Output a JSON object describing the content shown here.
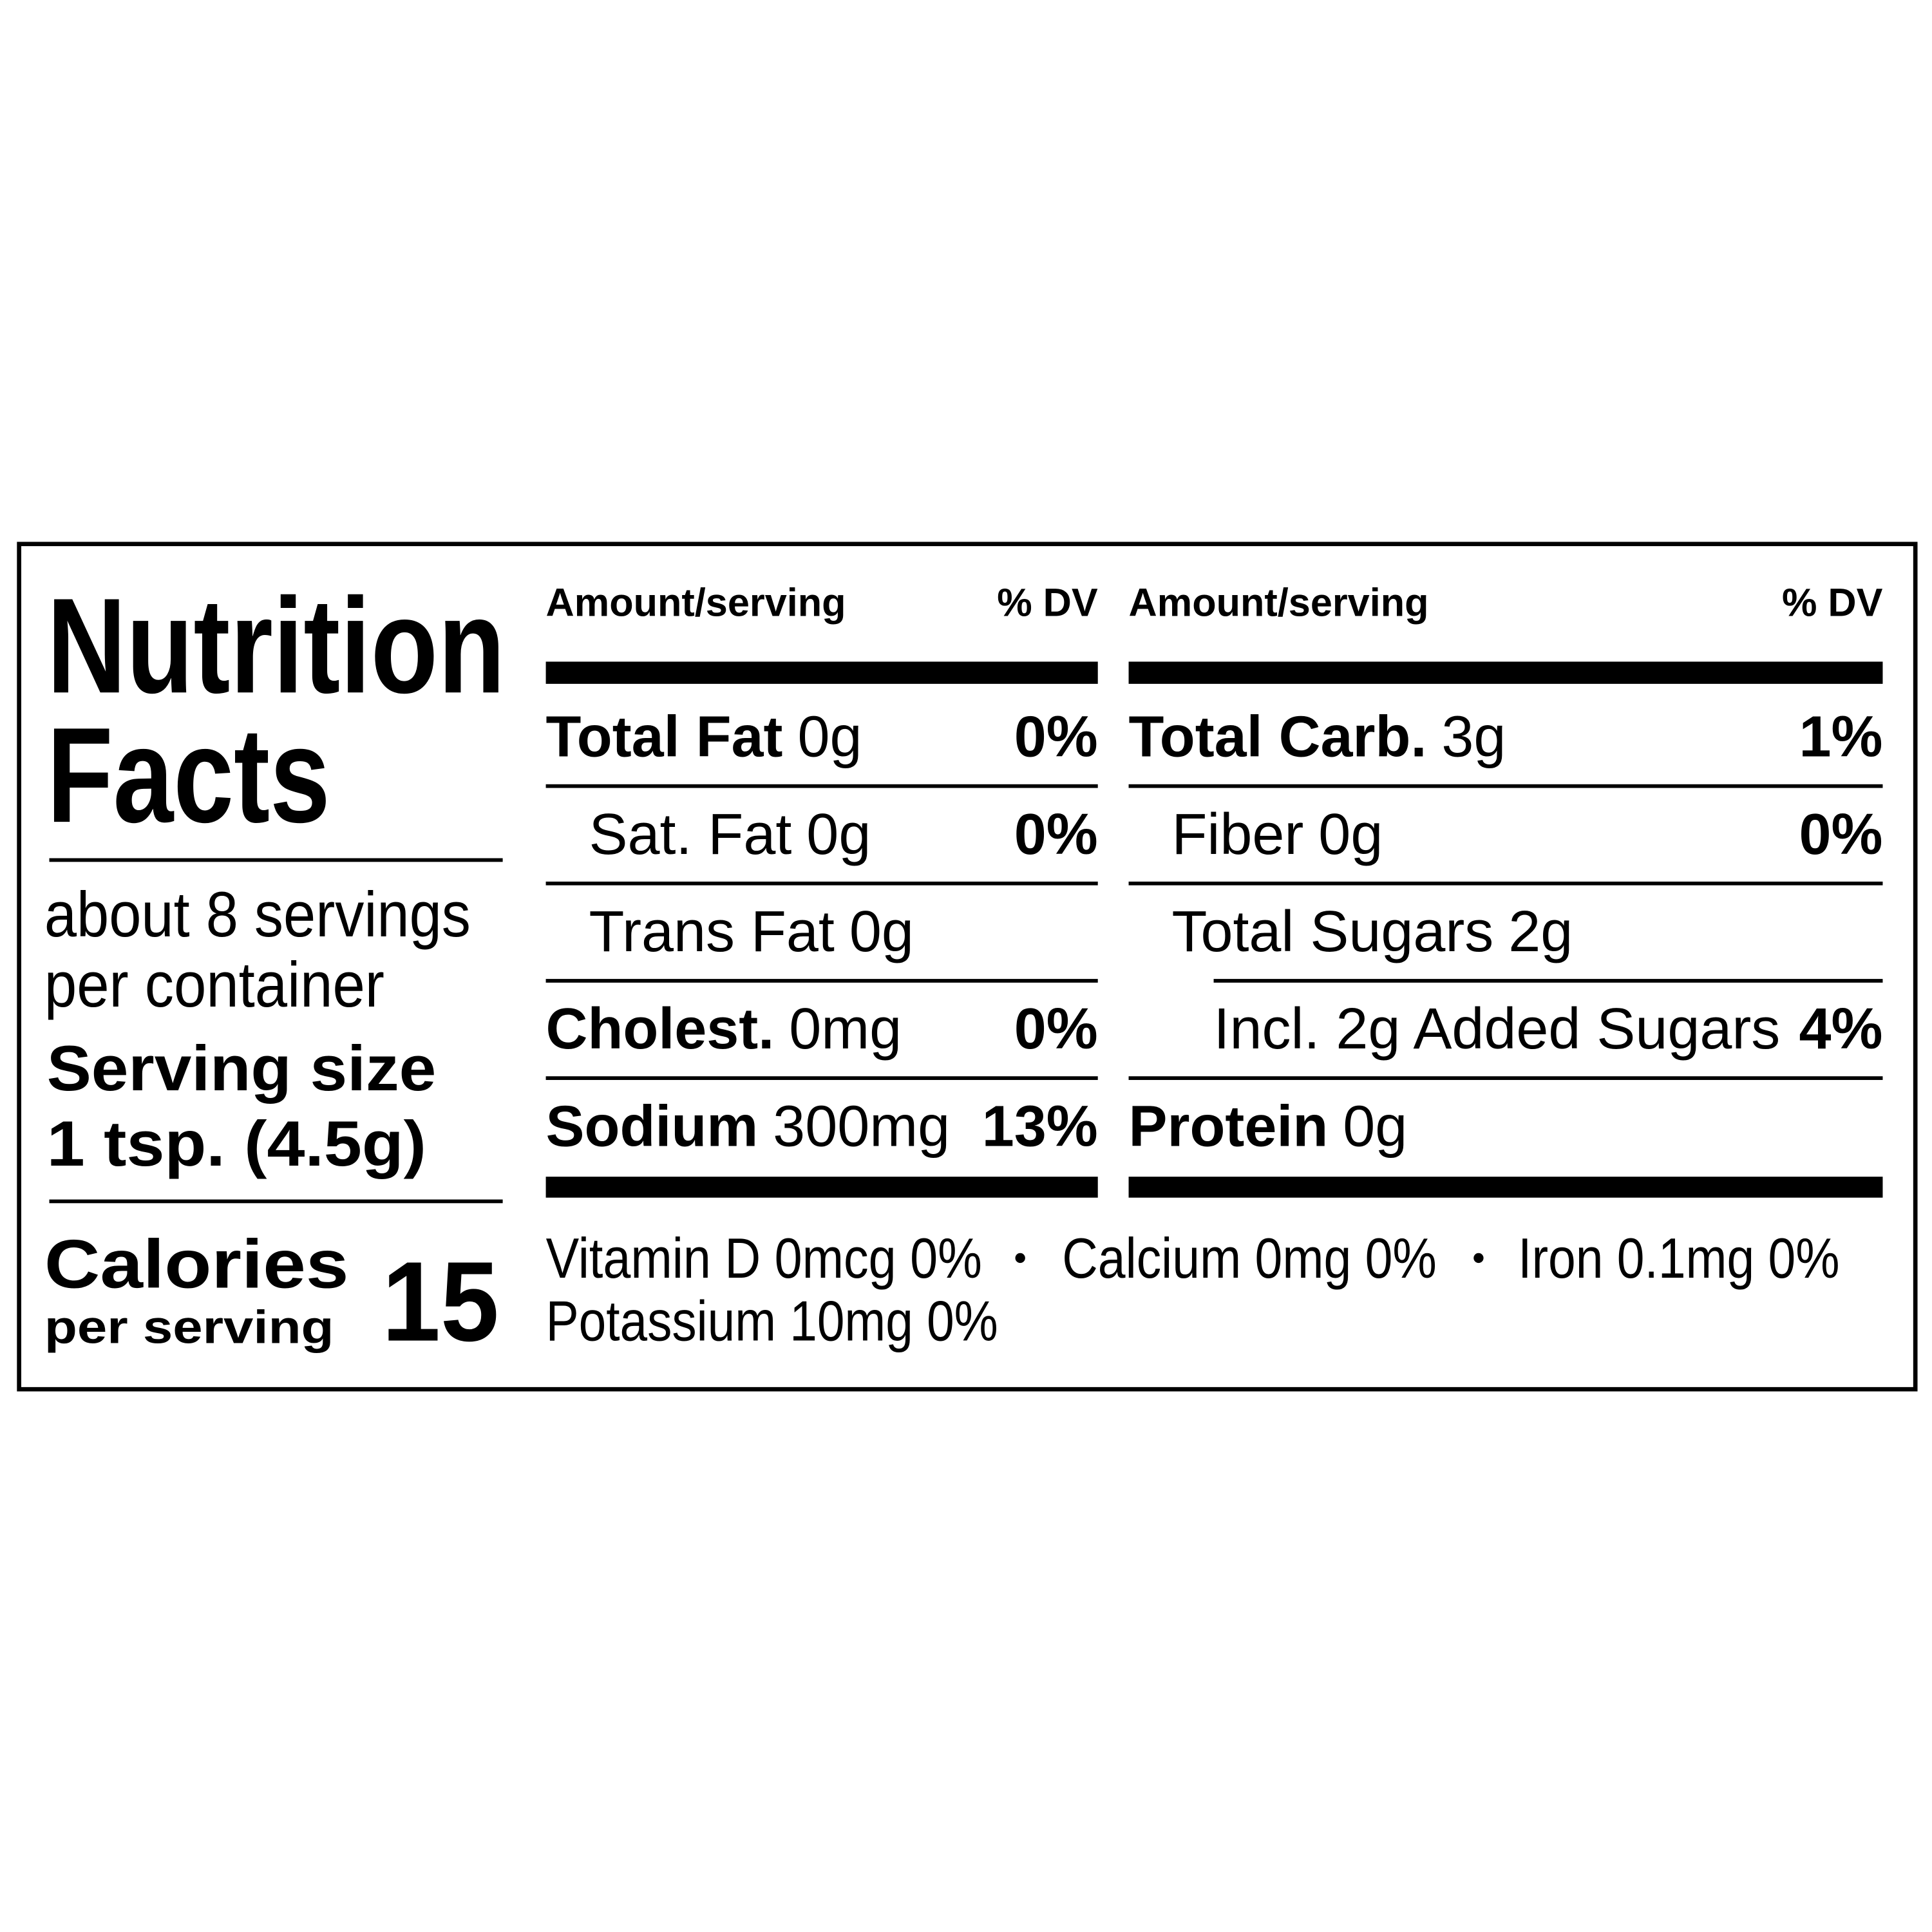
{
  "title": [
    "Nutrition",
    "Facts"
  ],
  "servings": [
    "about 8 servings",
    "per container"
  ],
  "serving_size": {
    "label": "Serving size",
    "value": "1 tsp. (4.5g)"
  },
  "calories": {
    "label": "Calories",
    "sublabel": "per serving",
    "value": 15
  },
  "columns": [
    {
      "header_amount": "Amount/serving",
      "header_dv": "% DV",
      "rows": [
        {
          "name": "Total Fat",
          "amount": "0g",
          "dv": "0%",
          "indent": 0
        },
        {
          "name": "Sat. Fat",
          "amount": "0g",
          "dv": "0%",
          "indent": 1
        },
        {
          "name": "Trans Fat",
          "amount": "0g",
          "indent": 1
        },
        {
          "name": "Cholest.",
          "amount": "0mg",
          "dv": "0%",
          "indent": 0
        },
        {
          "name": "Sodium",
          "amount": "300mg",
          "dv": "13%",
          "indent": 0
        }
      ]
    },
    {
      "header_amount": "Amount/serving",
      "header_dv": "% DV",
      "rows": [
        {
          "name": "Total Carb.",
          "amount": "3g",
          "dv": "1%",
          "indent": 0
        },
        {
          "name": "Fiber",
          "amount": "0g",
          "dv": "0%",
          "indent": 1
        },
        {
          "name": "Total Sugars",
          "amount": "2g",
          "indent": 1
        },
        {
          "name": "Incl. 2g Added Sugars",
          "dv": "4%",
          "indent": 2
        },
        {
          "name": "Protein",
          "amount": "0g",
          "indent": 0
        }
      ]
    }
  ],
  "vitamins": [
    "Vitamin D 0mcg 0%",
    "Calcium 0mg 0%",
    "Iron 0.1mg 0%",
    "Potassium 10mg 0%"
  ]
}
